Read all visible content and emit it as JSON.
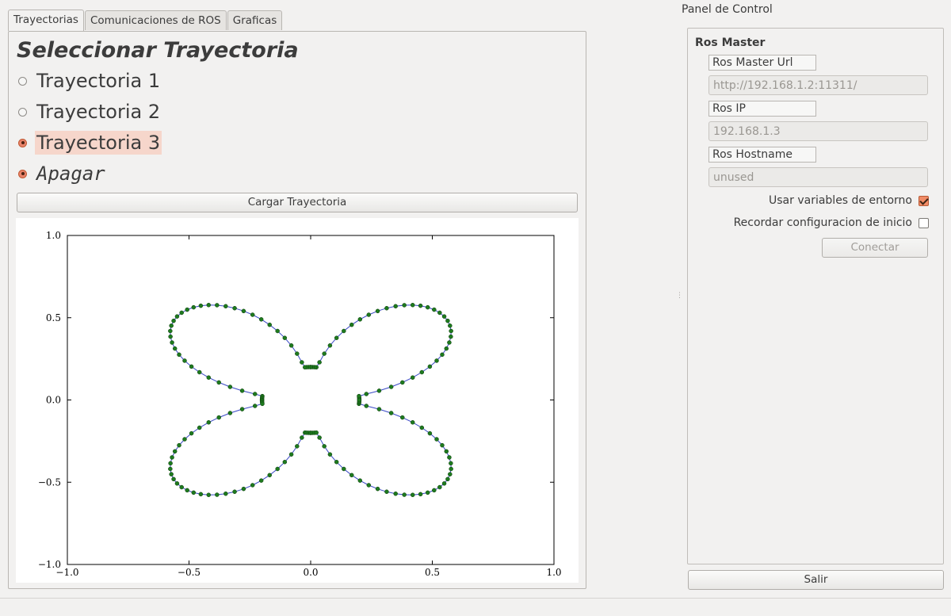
{
  "tabs": [
    "Trayectorias",
    "Comunicaciones de ROS",
    "Graficas"
  ],
  "trayectorias": {
    "title": "Seleccionar Trayectoria",
    "options": [
      {
        "label": "Trayectoria 1",
        "checked": false
      },
      {
        "label": "Trayectoria 2",
        "checked": false
      },
      {
        "label": "Trayectoria 3",
        "checked": true
      },
      {
        "label": "Apagar",
        "checked": true
      }
    ],
    "load_button": "Cargar Trayectoria"
  },
  "chart_data": {
    "type": "line",
    "description_curve": "r = 0.75*|sin(2θ)| style four-petal rose with flattened inner cusps",
    "xlim": [
      -1.0,
      1.0
    ],
    "ylim": [
      -1.0,
      1.0
    ],
    "xticks": [
      "−1.0",
      "−0.5",
      "0.0",
      "0.5",
      "1.0"
    ],
    "yticks": [
      "−1.0",
      "−0.5",
      "0.0",
      "0.5",
      "1.0"
    ],
    "line_color": "#3a49c6",
    "marker_color": "#1e7a1e",
    "series": [
      {
        "petal": "top-right",
        "angle_start_deg": 0,
        "angle_end_deg": 90
      },
      {
        "petal": "top-left",
        "angle_start_deg": 90,
        "angle_end_deg": 180
      },
      {
        "petal": "bottom-left",
        "angle_start_deg": 180,
        "angle_end_deg": 270
      },
      {
        "petal": "bottom-right",
        "angle_start_deg": 270,
        "angle_end_deg": 360
      }
    ],
    "r_max": 0.75,
    "r_min": 0.2
  },
  "panel": {
    "title": "Panel de Control",
    "group_title": "Ros Master",
    "fields": [
      {
        "label": "Ros Master Url",
        "value": "http://192.168.1.2:11311/"
      },
      {
        "label": "Ros IP",
        "value": "192.168.1.3"
      },
      {
        "label": "Ros Hostname",
        "value": "unused"
      }
    ],
    "use_env_label": "Usar variables de entorno",
    "use_env_checked": true,
    "remember_label": "Recordar configuracion de inicio",
    "remember_checked": false,
    "connect_button": "Conectar",
    "exit_button": "Salir"
  }
}
